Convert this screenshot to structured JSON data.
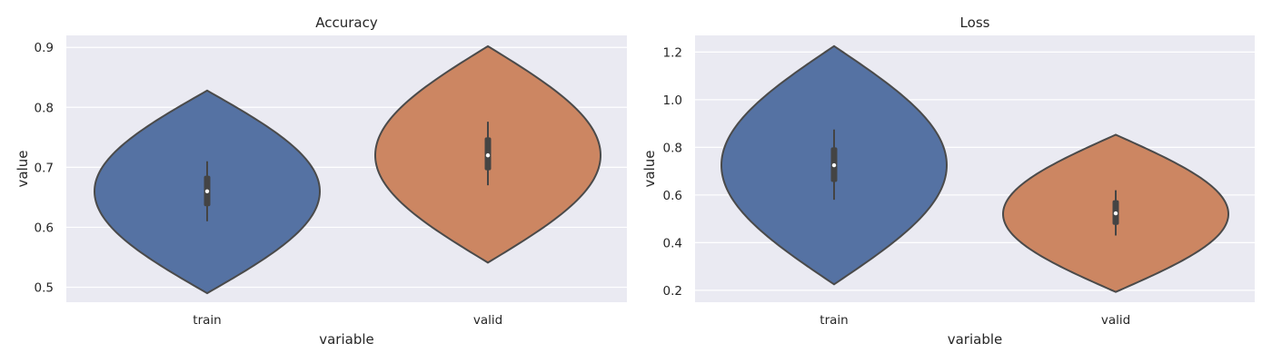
{
  "chart_data": [
    {
      "type": "violin",
      "title": "Accuracy",
      "xlabel": "variable",
      "ylabel": "value",
      "ylim": [
        0.475,
        0.92
      ],
      "yticks": [
        0.5,
        0.6,
        0.7,
        0.8,
        0.9
      ],
      "ytick_labels": [
        "0.5",
        "0.6",
        "0.7",
        "0.8",
        "0.9"
      ],
      "grid": true,
      "categories": [
        "train",
        "valid"
      ],
      "colors": [
        "#5572a3",
        "#cc8662"
      ],
      "violins": [
        {
          "category": "train",
          "min": 0.49,
          "max": 0.828,
          "center": 0.66,
          "q1": 0.635,
          "median": 0.66,
          "q3": 0.686,
          "whisker_low": 0.61,
          "whisker_high": 0.71
        },
        {
          "category": "valid",
          "min": 0.541,
          "max": 0.902,
          "center": 0.72,
          "q1": 0.695,
          "median": 0.72,
          "q3": 0.75,
          "whisker_low": 0.67,
          "whisker_high": 0.776
        }
      ]
    },
    {
      "type": "violin",
      "title": "Loss",
      "xlabel": "variable",
      "ylabel": "value",
      "ylim": [
        0.15,
        1.27
      ],
      "yticks": [
        0.2,
        0.4,
        0.6,
        0.8,
        1.0,
        1.2
      ],
      "ytick_labels": [
        "0.2",
        "0.4",
        "0.6",
        "0.8",
        "1.0",
        "1.2"
      ],
      "grid": true,
      "categories": [
        "train",
        "valid"
      ],
      "colors": [
        "#5572a3",
        "#cc8662"
      ],
      "violins": [
        {
          "category": "train",
          "min": 0.225,
          "max": 1.225,
          "center": 0.725,
          "q1": 0.655,
          "median": 0.725,
          "q3": 0.8,
          "whisker_low": 0.58,
          "whisker_high": 0.875
        },
        {
          "category": "valid",
          "min": 0.193,
          "max": 0.853,
          "center": 0.52,
          "q1": 0.475,
          "median": 0.523,
          "q3": 0.578,
          "whisker_low": 0.43,
          "whisker_high": 0.62
        }
      ]
    }
  ]
}
